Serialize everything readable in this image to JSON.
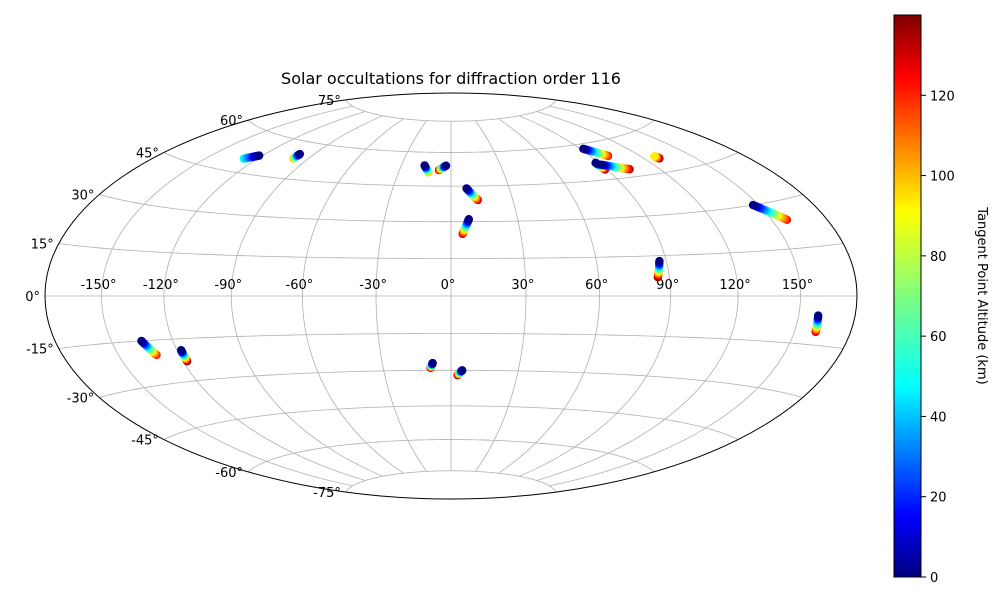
{
  "chart_data": {
    "type": "scatter",
    "projection": "hammer",
    "title": "Solar occultations for diffraction order 116",
    "xlabel": "",
    "ylabel": "",
    "x_ticks": [
      "-150°",
      "-120°",
      "-90°",
      "-60°",
      "-30°",
      "0°",
      "30°",
      "60°",
      "90°",
      "120°",
      "150°"
    ],
    "y_ticks": [
      "75°",
      "60°",
      "45°",
      "30°",
      "15°",
      "0°",
      "-15°",
      "-30°",
      "-45°",
      "-60°",
      "-75°"
    ],
    "grid": true,
    "colorbar": {
      "label": "Tangent Point Altitude (km)",
      "range": [
        0,
        140
      ],
      "ticks": [
        "0",
        "20",
        "40",
        "60",
        "80",
        "100",
        "120"
      ],
      "colormap": "jet"
    },
    "tracks": [
      {
        "start": [
          -122,
          52
        ],
        "end": [
          -128,
          50
        ],
        "alt_start": 0,
        "alt_end": 55
      },
      {
        "start": [
          -99,
          55
        ],
        "end": [
          -99,
          53
        ],
        "alt_start": 0,
        "alt_end": 100
      },
      {
        "start": [
          -16,
          54
        ],
        "end": [
          -13,
          51
        ],
        "alt_start": 0,
        "alt_end": 100
      },
      {
        "start": [
          -3,
          54
        ],
        "end": [
          -7,
          52
        ],
        "alt_start": 0,
        "alt_end": 130
      },
      {
        "start": [
          8,
          44
        ],
        "end": [
          13,
          39
        ],
        "alt_start": 0,
        "alt_end": 130
      },
      {
        "start": [
          8,
          31
        ],
        "end": [
          5,
          25
        ],
        "alt_start": 0,
        "alt_end": 130
      },
      {
        "start": [
          92,
          58
        ],
        "end": [
          101,
          54
        ],
        "alt_start": 0,
        "alt_end": 120
      },
      {
        "start": [
          88,
          52
        ],
        "end": [
          89,
          49
        ],
        "alt_start": 0,
        "alt_end": 140
      },
      {
        "start": [
          90,
          51
        ],
        "end": [
          103,
          48
        ],
        "alt_start": 0,
        "alt_end": 130
      },
      {
        "start": [
          128,
          51
        ],
        "end": [
          129,
          50
        ],
        "alt_start": 90,
        "alt_end": 140
      },
      {
        "start": [
          147,
          30
        ],
        "end": [
          158,
          24
        ],
        "alt_start": 0,
        "alt_end": 120
      },
      {
        "start": [
          87,
          13
        ],
        "end": [
          85,
          7
        ],
        "alt_start": 0,
        "alt_end": 140
      },
      {
        "start": [
          160,
          -6
        ],
        "end": [
          161,
          -11
        ],
        "alt_start": 0,
        "alt_end": 130
      },
      {
        "start": [
          -135,
          -15
        ],
        "end": [
          -131,
          -20
        ],
        "alt_start": 0,
        "alt_end": 120
      },
      {
        "start": [
          -118,
          -19
        ],
        "end": [
          -118,
          -23
        ],
        "alt_start": 0,
        "alt_end": 140
      },
      {
        "start": [
          -8,
          -27
        ],
        "end": [
          -9,
          -29
        ],
        "alt_start": 0,
        "alt_end": 140
      },
      {
        "start": [
          5,
          -30
        ],
        "end": [
          3,
          -32
        ],
        "alt_start": 0,
        "alt_end": 140
      }
    ]
  }
}
